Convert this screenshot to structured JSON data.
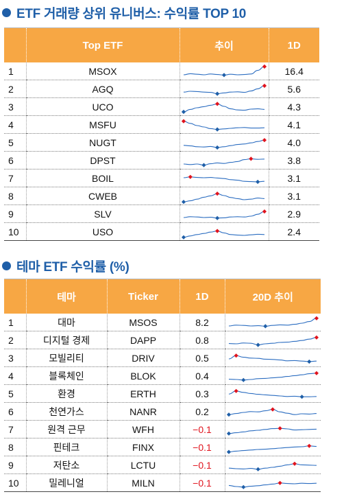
{
  "top": {
    "title": "ETF 거래량 상위 유니버스: 수익률 TOP 10",
    "headers": {
      "rank": "",
      "etf": "Top ETF",
      "trend": "추이",
      "ret": "1D"
    },
    "rows": [
      {
        "rank": "1",
        "ticker": "MSOX",
        "ret": "16.4",
        "trend": [
          3,
          3.4,
          3.2,
          3,
          3.3,
          3.1,
          2.9,
          3.2,
          3,
          3.1,
          3.3,
          4.6,
          6
        ],
        "mark": "up"
      },
      {
        "rank": "2",
        "ticker": "AGQ",
        "ret": "5.6",
        "trend": [
          3.2,
          3.5,
          3.4,
          3.2,
          3.1,
          2.6,
          2.9,
          3.2,
          3.3,
          3.1,
          3.6,
          4.4,
          5.5
        ],
        "mark": "up"
      },
      {
        "rank": "3",
        "ticker": "UCO",
        "ret": "4.3",
        "trend": [
          2.5,
          3.4,
          4,
          4.4,
          4.9,
          5.4,
          4.5,
          3.6,
          3.2,
          3.1,
          3.5,
          3.6,
          3.4
        ],
        "mark": "mid"
      },
      {
        "rank": "4",
        "ticker": "MSFU",
        "ret": "4.1",
        "trend": [
          5.6,
          4.8,
          4,
          3.5,
          2.9,
          2.6,
          2.8,
          3,
          3.2,
          3.3,
          3.1,
          3.1,
          3.2
        ],
        "mark": "down"
      },
      {
        "rank": "5",
        "ticker": "NUGT",
        "ret": "4.0",
        "trend": [
          3.3,
          3.1,
          2.8,
          2.7,
          2.9,
          2.5,
          2.8,
          3.2,
          3.6,
          3.8,
          4.2,
          4.7,
          5.2
        ],
        "mark": "up"
      },
      {
        "rank": "6",
        "ticker": "DPST",
        "ret": "3.8",
        "trend": [
          3,
          2.8,
          3,
          2.6,
          3.1,
          3.4,
          3.2,
          3.6,
          3.9,
          4.6,
          4.9,
          4.7,
          4.8
        ],
        "mark": "mid"
      },
      {
        "rank": "7",
        "ticker": "BOIL",
        "ret": "3.1",
        "trend": [
          4.5,
          4.8,
          4.6,
          4.5,
          4.6,
          4.4,
          4.2,
          3.8,
          3.6,
          3.2,
          3.1,
          3,
          3.2
        ],
        "mark": "down"
      },
      {
        "rank": "8",
        "ticker": "CWEB",
        "ret": "3.1",
        "trend": [
          2.2,
          2.6,
          3.2,
          3.9,
          4.4,
          5.2,
          4.5,
          3.8,
          3.4,
          3,
          3.2,
          3.6,
          3.4
        ],
        "mark": "mid"
      },
      {
        "rank": "9",
        "ticker": "SLV",
        "ret": "2.9",
        "trend": [
          3,
          3.3,
          3.2,
          3,
          3.1,
          2.8,
          2.9,
          3.2,
          3.3,
          3.2,
          3.5,
          4.2,
          5.2
        ],
        "mark": "up"
      },
      {
        "rank": "10",
        "ticker": "USO",
        "ret": "2.4",
        "trend": [
          2.3,
          2.8,
          3.3,
          3.7,
          4.2,
          4.6,
          3.9,
          3.3,
          3.1,
          3,
          3.2,
          3.4,
          3.3
        ],
        "mark": "mid"
      }
    ]
  },
  "theme": {
    "title": "테마 ETF 수익률 (%)",
    "headers": {
      "rank": "",
      "theme": "테마",
      "ticker": "Ticker",
      "ret": "1D",
      "trend": "20D 추이"
    },
    "rows": [
      {
        "rank": "1",
        "theme": "대마",
        "ticker": "MSOS",
        "ret": "8.2",
        "neg": false,
        "trend": [
          3,
          3.3,
          3.2,
          3,
          3.1,
          2.9,
          3.2,
          3.4,
          3.3,
          3.6,
          4,
          4.6,
          5.8
        ],
        "mark": "up"
      },
      {
        "rank": "2",
        "theme": "디지털 경제",
        "ticker": "DAPP",
        "ret": "0.8",
        "neg": false,
        "trend": [
          3.1,
          3,
          3.3,
          3.2,
          2.6,
          3,
          3.2,
          3.5,
          3.6,
          3.9,
          4.2,
          4.7,
          5.3
        ],
        "mark": "up"
      },
      {
        "rank": "3",
        "theme": "모빌리티",
        "ticker": "DRIV",
        "ret": "0.5",
        "neg": false,
        "trend": [
          4,
          5.2,
          4.6,
          4.3,
          4.2,
          3.9,
          3.8,
          3.6,
          3.3,
          3.4,
          3.2,
          3,
          3.2
        ],
        "mark": "down"
      },
      {
        "rank": "4",
        "theme": "블록체인",
        "ticker": "BLOK",
        "ret": "0.4",
        "neg": false,
        "trend": [
          3.1,
          3,
          2.8,
          3,
          3.3,
          3.4,
          3.6,
          3.8,
          4.1,
          4.4,
          4.7,
          5.1,
          5.3
        ],
        "mark": "up"
      },
      {
        "rank": "5",
        "theme": "환경",
        "ticker": "ERTH",
        "ret": "0.3",
        "neg": false,
        "trend": [
          4.2,
          5.3,
          4.8,
          4.4,
          4.1,
          3.9,
          3.7,
          3.5,
          3.3,
          3.4,
          3.2,
          3.2,
          3.3
        ],
        "mark": "down"
      },
      {
        "rank": "6",
        "theme": "천연가스",
        "ticker": "NANR",
        "ret": "0.2",
        "neg": false,
        "trend": [
          3.2,
          3.6,
          4,
          4.3,
          4.2,
          4.6,
          5.1,
          4.2,
          3.7,
          3.2,
          3.5,
          3.4,
          3.6
        ],
        "mark": "mid"
      },
      {
        "rank": "7",
        "theme": "원격 근무",
        "ticker": "WFH",
        "ret": "−0.1",
        "neg": true,
        "trend": [
          2.8,
          3.1,
          3.4,
          3.8,
          4,
          4.3,
          4.6,
          4.7,
          4.5,
          4.1,
          4.2,
          4.3,
          4.4
        ],
        "mark": "mid"
      },
      {
        "rank": "8",
        "theme": "핀테크",
        "ticker": "FINX",
        "ret": "−0.1",
        "neg": true,
        "trend": [
          2.6,
          2.9,
          3.1,
          3.3,
          3.5,
          3.6,
          3.8,
          4,
          4.2,
          4.4,
          4.5,
          4.8,
          4.6
        ],
        "mark": "up"
      },
      {
        "rank": "9",
        "theme": "저탄소",
        "ticker": "LCTU",
        "ret": "−0.1",
        "neg": true,
        "trend": [
          3.2,
          3,
          2.9,
          3.1,
          2.8,
          3.2,
          3.5,
          3.9,
          4.4,
          4.8,
          4.4,
          4.3,
          4.2
        ],
        "mark": "mid"
      },
      {
        "rank": "10",
        "theme": "밀레니얼",
        "ticker": "MILN",
        "ret": "−0.1",
        "neg": true,
        "trend": [
          3.4,
          3,
          2.8,
          3.1,
          3.3,
          3.6,
          3.9,
          4.3,
          4.1,
          4,
          4.2,
          4.1,
          4.2
        ],
        "mark": "mid"
      }
    ]
  },
  "colors": {
    "accent": "#1f5fa8",
    "header_bg": "#f7a744",
    "line": "#2a6cc0",
    "marker_high": "#e0141e",
    "marker_low": "#1f5fa8",
    "negative": "#e0141e"
  }
}
